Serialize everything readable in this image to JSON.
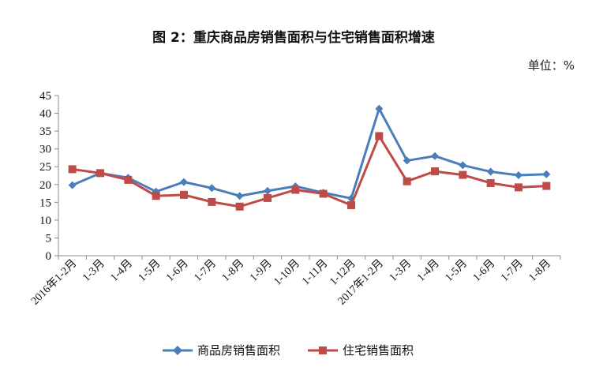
{
  "chart_data": {
    "type": "line",
    "title": "图 2：重庆商品房销售面积与住宅销售面积增速",
    "unit_label": "单位：%",
    "categories": [
      "2016年1-2月",
      "1-3月",
      "1-4月",
      "1-5月",
      "1-6月",
      "1-7月",
      "1-8月",
      "1-9月",
      "1-10月",
      "1-11月",
      "1-12月",
      "2017年1-2月",
      "1-3月",
      "1-4月",
      "1-5月",
      "1-6月",
      "1-7月",
      "1-8月"
    ],
    "ylim": [
      0,
      45
    ],
    "yticks": [
      0,
      5,
      10,
      15,
      20,
      25,
      30,
      35,
      40,
      45
    ],
    "grid": false,
    "legend_position": "bottom",
    "series": [
      {
        "name": "商品房销售面积",
        "color": "#4a7ebb",
        "marker": "diamond",
        "values": [
          19.8,
          23.2,
          21.9,
          18.0,
          20.7,
          19.0,
          16.8,
          18.2,
          19.5,
          17.7,
          16.1,
          41.3,
          26.7,
          28.0,
          25.4,
          23.6,
          22.6,
          22.9
        ]
      },
      {
        "name": "住宅销售面积",
        "color": "#be4b48",
        "marker": "square",
        "values": [
          24.3,
          23.2,
          21.3,
          16.8,
          17.1,
          15.1,
          13.8,
          16.2,
          18.5,
          17.4,
          14.2,
          33.6,
          20.9,
          23.7,
          22.7,
          20.4,
          19.2,
          19.6
        ]
      }
    ]
  }
}
